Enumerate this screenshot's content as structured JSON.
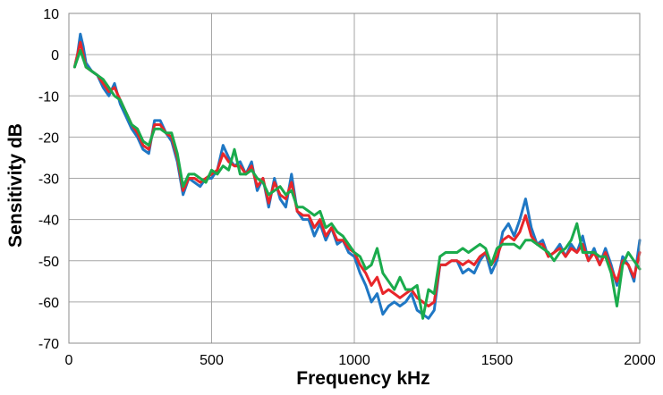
{
  "chart_data": {
    "type": "line",
    "title": "",
    "xlabel": "Frequency  kHz",
    "ylabel": "Sensitivity  dB",
    "xlim": [
      0,
      2000
    ],
    "ylim": [
      -70,
      10
    ],
    "x_ticks": [
      0,
      500,
      1000,
      1500,
      2000
    ],
    "y_ticks": [
      10,
      0,
      -10,
      -20,
      -30,
      -40,
      -50,
      -60,
      -70
    ],
    "grid": true,
    "legend": "none",
    "series": [
      {
        "color": "#1f77c4",
        "points": [
          [
            20,
            -3
          ],
          [
            30,
            0
          ],
          [
            40,
            5
          ],
          [
            50,
            2
          ],
          [
            60,
            -2
          ],
          [
            80,
            -4
          ],
          [
            100,
            -5
          ],
          [
            120,
            -8
          ],
          [
            140,
            -10
          ],
          [
            160,
            -7
          ],
          [
            180,
            -12
          ],
          [
            200,
            -15
          ],
          [
            220,
            -18
          ],
          [
            240,
            -20
          ],
          [
            260,
            -23
          ],
          [
            280,
            -24
          ],
          [
            300,
            -16
          ],
          [
            320,
            -16
          ],
          [
            340,
            -19
          ],
          [
            360,
            -21
          ],
          [
            380,
            -26
          ],
          [
            400,
            -34
          ],
          [
            420,
            -30
          ],
          [
            440,
            -31
          ],
          [
            460,
            -32
          ],
          [
            480,
            -30
          ],
          [
            500,
            -30
          ],
          [
            520,
            -28
          ],
          [
            540,
            -22
          ],
          [
            560,
            -25
          ],
          [
            580,
            -27
          ],
          [
            600,
            -26
          ],
          [
            620,
            -29
          ],
          [
            640,
            -26
          ],
          [
            660,
            -33
          ],
          [
            680,
            -30
          ],
          [
            700,
            -37
          ],
          [
            720,
            -30
          ],
          [
            740,
            -35
          ],
          [
            760,
            -37
          ],
          [
            780,
            -29
          ],
          [
            800,
            -38
          ],
          [
            820,
            -40
          ],
          [
            840,
            -40
          ],
          [
            860,
            -44
          ],
          [
            880,
            -41
          ],
          [
            900,
            -45
          ],
          [
            920,
            -42
          ],
          [
            940,
            -46
          ],
          [
            960,
            -45
          ],
          [
            980,
            -48
          ],
          [
            1000,
            -49
          ],
          [
            1020,
            -53
          ],
          [
            1040,
            -56
          ],
          [
            1060,
            -60
          ],
          [
            1080,
            -58
          ],
          [
            1100,
            -63
          ],
          [
            1120,
            -61
          ],
          [
            1140,
            -60
          ],
          [
            1160,
            -61
          ],
          [
            1180,
            -60
          ],
          [
            1200,
            -58
          ],
          [
            1220,
            -62
          ],
          [
            1240,
            -63
          ],
          [
            1260,
            -64
          ],
          [
            1280,
            -62
          ],
          [
            1300,
            -51
          ],
          [
            1320,
            -51
          ],
          [
            1340,
            -50
          ],
          [
            1360,
            -50
          ],
          [
            1380,
            -53
          ],
          [
            1400,
            -52
          ],
          [
            1420,
            -53
          ],
          [
            1440,
            -50
          ],
          [
            1460,
            -48
          ],
          [
            1480,
            -53
          ],
          [
            1500,
            -50
          ],
          [
            1520,
            -43
          ],
          [
            1540,
            -41
          ],
          [
            1560,
            -44
          ],
          [
            1580,
            -40
          ],
          [
            1600,
            -35
          ],
          [
            1620,
            -42
          ],
          [
            1640,
            -46
          ],
          [
            1660,
            -45
          ],
          [
            1680,
            -49
          ],
          [
            1700,
            -48
          ],
          [
            1720,
            -46
          ],
          [
            1740,
            -49
          ],
          [
            1760,
            -46
          ],
          [
            1780,
            -48
          ],
          [
            1800,
            -44
          ],
          [
            1820,
            -50
          ],
          [
            1840,
            -47
          ],
          [
            1860,
            -51
          ],
          [
            1880,
            -47
          ],
          [
            1900,
            -51
          ],
          [
            1920,
            -56
          ],
          [
            1940,
            -49
          ],
          [
            1960,
            -51
          ],
          [
            1980,
            -55
          ],
          [
            2000,
            -45
          ]
        ]
      },
      {
        "color": "#e8262a",
        "points": [
          [
            20,
            -3
          ],
          [
            30,
            0
          ],
          [
            40,
            3
          ],
          [
            50,
            0
          ],
          [
            60,
            -3
          ],
          [
            80,
            -4
          ],
          [
            100,
            -5
          ],
          [
            120,
            -7
          ],
          [
            140,
            -9
          ],
          [
            160,
            -8
          ],
          [
            180,
            -11
          ],
          [
            200,
            -14
          ],
          [
            220,
            -17
          ],
          [
            240,
            -19
          ],
          [
            260,
            -22
          ],
          [
            280,
            -23
          ],
          [
            300,
            -17
          ],
          [
            320,
            -17
          ],
          [
            340,
            -19
          ],
          [
            360,
            -20
          ],
          [
            380,
            -25
          ],
          [
            400,
            -33
          ],
          [
            420,
            -30
          ],
          [
            440,
            -30
          ],
          [
            460,
            -31
          ],
          [
            480,
            -30
          ],
          [
            500,
            -29
          ],
          [
            520,
            -28
          ],
          [
            540,
            -24
          ],
          [
            560,
            -26
          ],
          [
            580,
            -27
          ],
          [
            600,
            -27
          ],
          [
            620,
            -29
          ],
          [
            640,
            -27
          ],
          [
            660,
            -32
          ],
          [
            680,
            -30
          ],
          [
            700,
            -36
          ],
          [
            720,
            -31
          ],
          [
            740,
            -34
          ],
          [
            760,
            -35
          ],
          [
            780,
            -31
          ],
          [
            800,
            -38
          ],
          [
            820,
            -39
          ],
          [
            840,
            -39
          ],
          [
            860,
            -42
          ],
          [
            880,
            -40
          ],
          [
            900,
            -44
          ],
          [
            920,
            -42
          ],
          [
            940,
            -45
          ],
          [
            960,
            -45
          ],
          [
            980,
            -47
          ],
          [
            1000,
            -48
          ],
          [
            1020,
            -51
          ],
          [
            1040,
            -53
          ],
          [
            1060,
            -56
          ],
          [
            1080,
            -54
          ],
          [
            1100,
            -58
          ],
          [
            1120,
            -57
          ],
          [
            1140,
            -58
          ],
          [
            1160,
            -59
          ],
          [
            1180,
            -58
          ],
          [
            1200,
            -57
          ],
          [
            1220,
            -59
          ],
          [
            1240,
            -60
          ],
          [
            1260,
            -61
          ],
          [
            1280,
            -60
          ],
          [
            1300,
            -51
          ],
          [
            1320,
            -51
          ],
          [
            1340,
            -50
          ],
          [
            1360,
            -50
          ],
          [
            1380,
            -51
          ],
          [
            1400,
            -50
          ],
          [
            1420,
            -51
          ],
          [
            1440,
            -49
          ],
          [
            1460,
            -48
          ],
          [
            1480,
            -51
          ],
          [
            1500,
            -49
          ],
          [
            1520,
            -45
          ],
          [
            1540,
            -44
          ],
          [
            1560,
            -45
          ],
          [
            1580,
            -43
          ],
          [
            1600,
            -39
          ],
          [
            1620,
            -44
          ],
          [
            1640,
            -46
          ],
          [
            1660,
            -46
          ],
          [
            1680,
            -49
          ],
          [
            1700,
            -48
          ],
          [
            1720,
            -47
          ],
          [
            1740,
            -49
          ],
          [
            1760,
            -47
          ],
          [
            1780,
            -48
          ],
          [
            1800,
            -46
          ],
          [
            1820,
            -50
          ],
          [
            1840,
            -48
          ],
          [
            1860,
            -51
          ],
          [
            1880,
            -48
          ],
          [
            1900,
            -52
          ],
          [
            1920,
            -55
          ],
          [
            1940,
            -50
          ],
          [
            1960,
            -51
          ],
          [
            1980,
            -54
          ],
          [
            2000,
            -48
          ]
        ]
      },
      {
        "color": "#1aab4c",
        "points": [
          [
            20,
            -3
          ],
          [
            30,
            -1
          ],
          [
            40,
            1
          ],
          [
            50,
            -1
          ],
          [
            60,
            -3
          ],
          [
            80,
            -4
          ],
          [
            100,
            -5
          ],
          [
            120,
            -6
          ],
          [
            140,
            -8
          ],
          [
            160,
            -10
          ],
          [
            180,
            -11
          ],
          [
            200,
            -14
          ],
          [
            220,
            -17
          ],
          [
            240,
            -18
          ],
          [
            260,
            -21
          ],
          [
            280,
            -22
          ],
          [
            300,
            -18
          ],
          [
            320,
            -18
          ],
          [
            340,
            -19
          ],
          [
            360,
            -19
          ],
          [
            380,
            -24
          ],
          [
            400,
            -32
          ],
          [
            420,
            -29
          ],
          [
            440,
            -29
          ],
          [
            460,
            -30
          ],
          [
            480,
            -31
          ],
          [
            500,
            -28
          ],
          [
            520,
            -29
          ],
          [
            540,
            -27
          ],
          [
            560,
            -28
          ],
          [
            580,
            -23
          ],
          [
            600,
            -29
          ],
          [
            620,
            -29
          ],
          [
            640,
            -28
          ],
          [
            660,
            -30
          ],
          [
            680,
            -31
          ],
          [
            700,
            -34
          ],
          [
            720,
            -33
          ],
          [
            740,
            -32
          ],
          [
            760,
            -34
          ],
          [
            780,
            -33
          ],
          [
            800,
            -37
          ],
          [
            820,
            -37
          ],
          [
            840,
            -38
          ],
          [
            860,
            -39
          ],
          [
            880,
            -38
          ],
          [
            900,
            -42
          ],
          [
            920,
            -41
          ],
          [
            940,
            -43
          ],
          [
            960,
            -44
          ],
          [
            980,
            -46
          ],
          [
            1000,
            -48
          ],
          [
            1020,
            -49
          ],
          [
            1040,
            -52
          ],
          [
            1060,
            -51
          ],
          [
            1080,
            -47
          ],
          [
            1100,
            -53
          ],
          [
            1120,
            -55
          ],
          [
            1140,
            -57
          ],
          [
            1160,
            -54
          ],
          [
            1180,
            -57
          ],
          [
            1200,
            -57
          ],
          [
            1220,
            -56
          ],
          [
            1240,
            -64
          ],
          [
            1260,
            -57
          ],
          [
            1280,
            -58
          ],
          [
            1300,
            -49
          ],
          [
            1320,
            -48
          ],
          [
            1340,
            -48
          ],
          [
            1360,
            -48
          ],
          [
            1380,
            -47
          ],
          [
            1400,
            -48
          ],
          [
            1420,
            -47
          ],
          [
            1440,
            -46
          ],
          [
            1460,
            -47
          ],
          [
            1480,
            -51
          ],
          [
            1500,
            -47
          ],
          [
            1520,
            -46
          ],
          [
            1540,
            -46
          ],
          [
            1560,
            -46
          ],
          [
            1580,
            -47
          ],
          [
            1600,
            -45
          ],
          [
            1620,
            -45
          ],
          [
            1640,
            -46
          ],
          [
            1660,
            -47
          ],
          [
            1680,
            -48
          ],
          [
            1700,
            -50
          ],
          [
            1720,
            -48
          ],
          [
            1740,
            -47
          ],
          [
            1760,
            -45
          ],
          [
            1780,
            -41
          ],
          [
            1800,
            -48
          ],
          [
            1820,
            -48
          ],
          [
            1840,
            -48
          ],
          [
            1860,
            -49
          ],
          [
            1880,
            -49
          ],
          [
            1900,
            -53
          ],
          [
            1920,
            -61
          ],
          [
            1940,
            -51
          ],
          [
            1960,
            -48
          ],
          [
            1980,
            -50
          ],
          [
            2000,
            -52
          ]
        ]
      }
    ]
  }
}
